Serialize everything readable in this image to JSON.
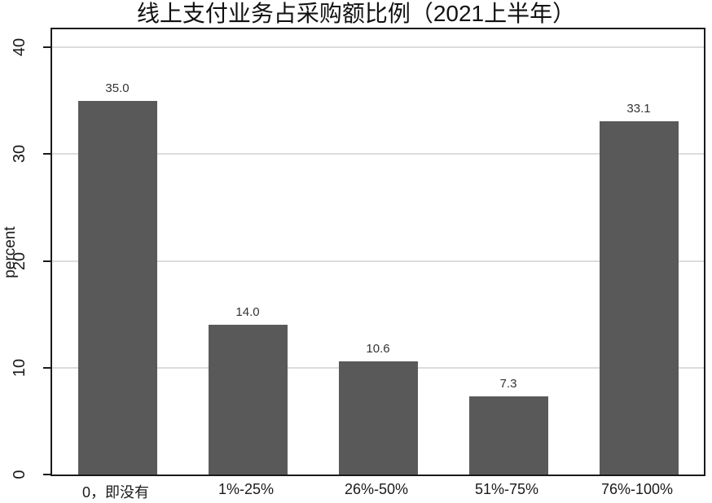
{
  "chart_data": {
    "type": "bar",
    "title": "线上支付业务占采购额比例（2021上半年）",
    "xlabel": "",
    "ylabel": "percent",
    "categories": [
      "0，即没有",
      "1%-25%",
      "26%-50%",
      "51%-75%",
      "76%-100%"
    ],
    "values": [
      35.0,
      14.0,
      10.6,
      7.3,
      33.1
    ],
    "value_labels": [
      "35.0",
      "14.0",
      "10.6",
      "7.3",
      "33.1"
    ],
    "ylim": [
      0,
      41.7
    ],
    "yticks": [
      0,
      10,
      20,
      30,
      40
    ],
    "ytick_labels": [
      "0",
      "10",
      "20",
      "30",
      "40"
    ],
    "grid": true,
    "legend": "none",
    "bar_color": "#595959",
    "gridline_color": "#dcdcdc",
    "axis_color": "#1a1a1a",
    "background_color": "#ffffff"
  }
}
